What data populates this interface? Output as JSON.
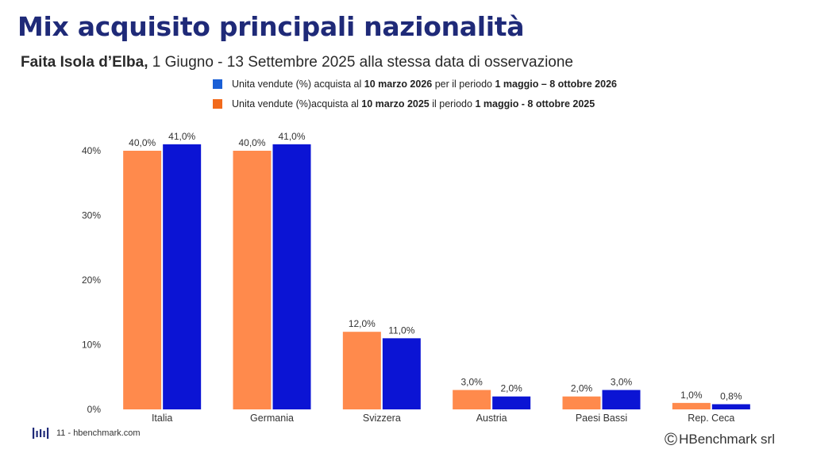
{
  "title": "Mix acquisito principali nazionalità",
  "subtitle": {
    "bold_part": "Faita Isola d’Elba,",
    "rest": " 1 Giugno - 13 Settembre 2025 alla stessa data di osservazione"
  },
  "legend": [
    {
      "color": "#1a5fd6",
      "parts": [
        {
          "text": "Unita vendute (%) acquista al ",
          "bold": false
        },
        {
          "text": "10 marzo 2026",
          "bold": true
        },
        {
          "text": " per il periodo ",
          "bold": false
        },
        {
          "text": "1 maggio – 8  ottobre 2026",
          "bold": true
        }
      ]
    },
    {
      "color": "#f26a1b",
      "parts": [
        {
          "text": "Unita vendute (%)acquista al ",
          "bold": false
        },
        {
          "text": "10 marzo 2025",
          "bold": true
        },
        {
          "text": "  il periodo ",
          "bold": false
        },
        {
          "text": "1 maggio  - 8 ottobre 2025",
          "bold": true
        }
      ]
    }
  ],
  "chart_data": {
    "type": "bar",
    "categories": [
      "Italia",
      "Germania",
      "Svizzera",
      "Austria",
      "Paesi Bassi",
      "Rep. Ceca"
    ],
    "series": [
      {
        "name": "Unita vendute (%)acquista al 10 marzo 2025 il periodo 1 maggio - 8 ottobre 2025",
        "color": "#ff8a4c",
        "values": [
          40.0,
          40.0,
          12.0,
          3.0,
          2.0,
          1.0
        ],
        "labels": [
          "40,0%",
          "40,0%",
          "12,0%",
          "3,0%",
          "2,0%",
          "1,0%"
        ]
      },
      {
        "name": "Unita vendute (%) acquista al 10 marzo 2026 per il periodo 1 maggio – 8 ottobre 2026",
        "color": "#0b14d4",
        "values": [
          41.0,
          41.0,
          11.0,
          2.0,
          3.0,
          0.8
        ],
        "labels": [
          "41,0%",
          "41,0%",
          "11,0%",
          "2,0%",
          "3,0%",
          "0,8%"
        ]
      }
    ],
    "ylim": [
      0,
      40
    ],
    "yticks": [
      0,
      10,
      20,
      30,
      40
    ],
    "ytick_labels": [
      "0%",
      "10%",
      "20%",
      "30%",
      "40%"
    ],
    "xlabel": "",
    "ylabel": "",
    "grid": false
  },
  "footer": {
    "page_text": "11 - hbenchmark.com",
    "copyright_symbol": "©",
    "copyright_text": "HBenchmark srl"
  }
}
